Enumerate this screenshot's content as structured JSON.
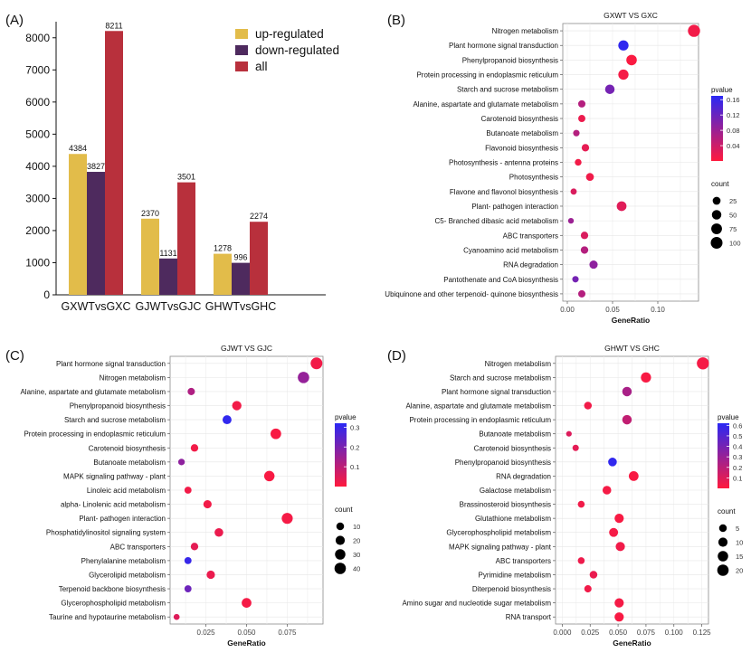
{
  "chart_data": [
    {
      "panel": "(A)",
      "type": "bar",
      "title": "",
      "xlabel": "",
      "ylabel": "",
      "ylim": [
        0,
        8500
      ],
      "yticks": [
        0,
        1000,
        2000,
        3000,
        4000,
        5000,
        6000,
        7000,
        8000
      ],
      "categories": [
        "GXWTvsGXC",
        "GJWTvsGJC",
        "GHWTvsGHC"
      ],
      "series": [
        {
          "name": "up-regulated",
          "color": "#e2bc4a",
          "values": [
            4384,
            2370,
            1278
          ]
        },
        {
          "name": "down-regulated",
          "color": "#4e2a5e",
          "values": [
            3827,
            1131,
            996
          ]
        },
        {
          "name": "all",
          "color": "#b8303c",
          "values": [
            8211,
            3501,
            2274
          ]
        }
      ],
      "legend_position": "top-right"
    },
    {
      "panel": "(B)",
      "type": "scatter",
      "title": "GXWT VS GXC",
      "xlabel": "GeneRatio",
      "xlim": [
        -0.005,
        0.145
      ],
      "xticks": [
        0.0,
        0.05,
        0.1
      ],
      "xtick_labels": [
        "0.00",
        "0.05",
        "0.10"
      ],
      "color_legend": {
        "title": "pvalue",
        "min": 0.0,
        "max": 0.17,
        "ticks": [
          0.16,
          0.12,
          0.08,
          0.04
        ],
        "tick_labels": [
          "0.16",
          "0.12",
          "0.08",
          "0.04"
        ]
      },
      "size_legend": {
        "title": "count",
        "values": [
          25,
          50,
          75,
          100
        ]
      },
      "points": [
        {
          "term": "Nitrogen metabolism",
          "ratio": 0.14,
          "pvalue": 0.01,
          "count": 110
        },
        {
          "term": "Plant hormone signal transduction",
          "ratio": 0.062,
          "pvalue": 0.165,
          "count": 65
        },
        {
          "term": "Phenylpropanoid biosynthesis",
          "ratio": 0.071,
          "pvalue": 0.004,
          "count": 70
        },
        {
          "term": "Protein processing in endoplasmic reticulum",
          "ratio": 0.062,
          "pvalue": 0.008,
          "count": 65
        },
        {
          "term": "Starch and sucrose metabolism",
          "ratio": 0.047,
          "pvalue": 0.11,
          "count": 50
        },
        {
          "term": "Alanine, aspartate and glutamate metabolism",
          "ratio": 0.016,
          "pvalue": 0.06,
          "count": 18
        },
        {
          "term": "Carotenoid biosynthesis",
          "ratio": 0.016,
          "pvalue": 0.015,
          "count": 17
        },
        {
          "term": "Butanoate metabolism",
          "ratio": 0.01,
          "pvalue": 0.06,
          "count": 10
        },
        {
          "term": "Flavonoid biosynthesis",
          "ratio": 0.02,
          "pvalue": 0.02,
          "count": 20
        },
        {
          "term": "Photosynthesis -  antenna proteins",
          "ratio": 0.012,
          "pvalue": 0.01,
          "count": 12
        },
        {
          "term": "Photosynthesis",
          "ratio": 0.025,
          "pvalue": 0.012,
          "count": 25
        },
        {
          "term": "Flavone and flavonol biosynthesis",
          "ratio": 0.007,
          "pvalue": 0.03,
          "count": 8
        },
        {
          "term": "Plant- pathogen interaction",
          "ratio": 0.06,
          "pvalue": 0.025,
          "count": 55
        },
        {
          "term": "C5- Branched dibasic acid metabolism",
          "ratio": 0.004,
          "pvalue": 0.08,
          "count": 5
        },
        {
          "term": "ABC transporters",
          "ratio": 0.019,
          "pvalue": 0.03,
          "count": 20
        },
        {
          "term": "Cyanoamino acid metabolism",
          "ratio": 0.019,
          "pvalue": 0.06,
          "count": 20
        },
        {
          "term": "RNA degradation",
          "ratio": 0.029,
          "pvalue": 0.09,
          "count": 30
        },
        {
          "term": "Pantothenate and CoA biosynthesis",
          "ratio": 0.009,
          "pvalue": 0.11,
          "count": 10
        },
        {
          "term": "Ubiquinone and other terpenoid- quinone biosynthesis",
          "ratio": 0.016,
          "pvalue": 0.06,
          "count": 18
        }
      ]
    },
    {
      "panel": "(C)",
      "type": "scatter",
      "title": "GJWT VS GJC",
      "xlabel": "GeneRatio",
      "xlim": [
        0.003,
        0.097
      ],
      "xticks": [
        0.025,
        0.05,
        0.075
      ],
      "xtick_labels": [
        "0.025",
        "0.050",
        "0.075"
      ],
      "color_legend": {
        "title": "pvalue",
        "min": 0.0,
        "max": 0.32,
        "ticks": [
          0.3,
          0.2,
          0.1
        ],
        "tick_labels": [
          "0.3",
          "0.2",
          "0.1"
        ]
      },
      "size_legend": {
        "title": "count",
        "values": [
          10,
          20,
          30,
          40
        ]
      },
      "points": [
        {
          "term": "Plant hormone signal transduction",
          "ratio": 0.093,
          "pvalue": 0.02,
          "count": 44
        },
        {
          "term": "Nitrogen metabolism",
          "ratio": 0.085,
          "pvalue": 0.16,
          "count": 40
        },
        {
          "term": "Alanine, aspartate and glutamate metabolism",
          "ratio": 0.016,
          "pvalue": 0.12,
          "count": 8
        },
        {
          "term": "Phenylpropanoid biosynthesis",
          "ratio": 0.044,
          "pvalue": 0.02,
          "count": 21
        },
        {
          "term": "Starch and sucrose metabolism",
          "ratio": 0.038,
          "pvalue": 0.31,
          "count": 18
        },
        {
          "term": "Protein processing in endoplasmic reticulum",
          "ratio": 0.068,
          "pvalue": 0.01,
          "count": 32
        },
        {
          "term": "Carotenoid biosynthesis",
          "ratio": 0.018,
          "pvalue": 0.02,
          "count": 9
        },
        {
          "term": "Butanoate metabolism",
          "ratio": 0.01,
          "pvalue": 0.17,
          "count": 5
        },
        {
          "term": "MAPK signaling pathway -  plant",
          "ratio": 0.064,
          "pvalue": 0.01,
          "count": 30
        },
        {
          "term": "Linoleic acid metabolism",
          "ratio": 0.014,
          "pvalue": 0.02,
          "count": 7
        },
        {
          "term": "alpha- Linolenic acid metabolism",
          "ratio": 0.026,
          "pvalue": 0.02,
          "count": 13
        },
        {
          "term": "Plant- pathogen interaction",
          "ratio": 0.075,
          "pvalue": 0.015,
          "count": 36
        },
        {
          "term": "Phosphatidylinositol signaling system",
          "ratio": 0.033,
          "pvalue": 0.03,
          "count": 16
        },
        {
          "term": "ABC transporters",
          "ratio": 0.018,
          "pvalue": 0.04,
          "count": 9
        },
        {
          "term": "Phenylalanine metabolism",
          "ratio": 0.014,
          "pvalue": 0.3,
          "count": 7
        },
        {
          "term": "Glycerolipid metabolism",
          "ratio": 0.028,
          "pvalue": 0.03,
          "count": 14
        },
        {
          "term": "Terpenoid backbone biosynthesis",
          "ratio": 0.014,
          "pvalue": 0.22,
          "count": 7
        },
        {
          "term": "Glycerophospholipid metabolism",
          "ratio": 0.05,
          "pvalue": 0.015,
          "count": 24
        },
        {
          "term": "Taurine and hypotaurine metabolism",
          "ratio": 0.007,
          "pvalue": 0.05,
          "count": 3
        }
      ]
    },
    {
      "panel": "(D)",
      "type": "scatter",
      "title": "GHWT VS GHC",
      "xlabel": "GeneRatio",
      "xlim": [
        -0.006,
        0.131
      ],
      "xticks": [
        0.0,
        0.025,
        0.05,
        0.075,
        0.1,
        0.125
      ],
      "xtick_labels": [
        "0.000",
        "0.025",
        "0.050",
        "0.075",
        "0.100",
        "0.125"
      ],
      "color_legend": {
        "title": "pvalue",
        "min": 0.0,
        "max": 0.62,
        "ticks": [
          0.6,
          0.5,
          0.4,
          0.3,
          0.2,
          0.1
        ],
        "tick_labels": [
          "0.6",
          "0.5",
          "0.4",
          "0.3",
          "0.2",
          "0.1"
        ]
      },
      "size_legend": {
        "title": "count",
        "values": [
          5,
          10,
          15,
          20
        ]
      },
      "points": [
        {
          "term": "Nitrogen metabolism",
          "ratio": 0.126,
          "pvalue": 0.03,
          "count": 24
        },
        {
          "term": "Starch and sucrose metabolism",
          "ratio": 0.075,
          "pvalue": 0.02,
          "count": 14
        },
        {
          "term": "Plant hormone signal transduction",
          "ratio": 0.058,
          "pvalue": 0.25,
          "count": 11
        },
        {
          "term": "Alanine, aspartate and glutamate metabolism",
          "ratio": 0.023,
          "pvalue": 0.04,
          "count": 5
        },
        {
          "term": "Protein processing in endoplasmic reticulum",
          "ratio": 0.058,
          "pvalue": 0.18,
          "count": 11
        },
        {
          "term": "Butanoate metabolism",
          "ratio": 0.006,
          "pvalue": 0.1,
          "count": 1
        },
        {
          "term": "Carotenoid biosynthesis",
          "ratio": 0.012,
          "pvalue": 0.08,
          "count": 2
        },
        {
          "term": "Phenylpropanoid biosynthesis",
          "ratio": 0.045,
          "pvalue": 0.6,
          "count": 8
        },
        {
          "term": "RNA degradation",
          "ratio": 0.064,
          "pvalue": 0.02,
          "count": 12
        },
        {
          "term": "Galactose metabolism",
          "ratio": 0.04,
          "pvalue": 0.03,
          "count": 8
        },
        {
          "term": "Brassinosteroid biosynthesis",
          "ratio": 0.017,
          "pvalue": 0.04,
          "count": 3
        },
        {
          "term": "Glutathione metabolism",
          "ratio": 0.051,
          "pvalue": 0.02,
          "count": 10
        },
        {
          "term": "Glycerophospholipid metabolism",
          "ratio": 0.046,
          "pvalue": 0.03,
          "count": 9
        },
        {
          "term": "MAPK signaling pathway -  plant",
          "ratio": 0.052,
          "pvalue": 0.04,
          "count": 10
        },
        {
          "term": "ABC transporters",
          "ratio": 0.017,
          "pvalue": 0.05,
          "count": 3
        },
        {
          "term": "Pyrimidine metabolism",
          "ratio": 0.028,
          "pvalue": 0.06,
          "count": 5
        },
        {
          "term": "Diterpenoid biosynthesis",
          "ratio": 0.023,
          "pvalue": 0.04,
          "count": 4
        },
        {
          "term": "Amino sugar and nucleotide sugar metabolism",
          "ratio": 0.051,
          "pvalue": 0.03,
          "count": 10
        },
        {
          "term": "RNA transport",
          "ratio": 0.051,
          "pvalue": 0.02,
          "count": 10
        }
      ]
    }
  ]
}
